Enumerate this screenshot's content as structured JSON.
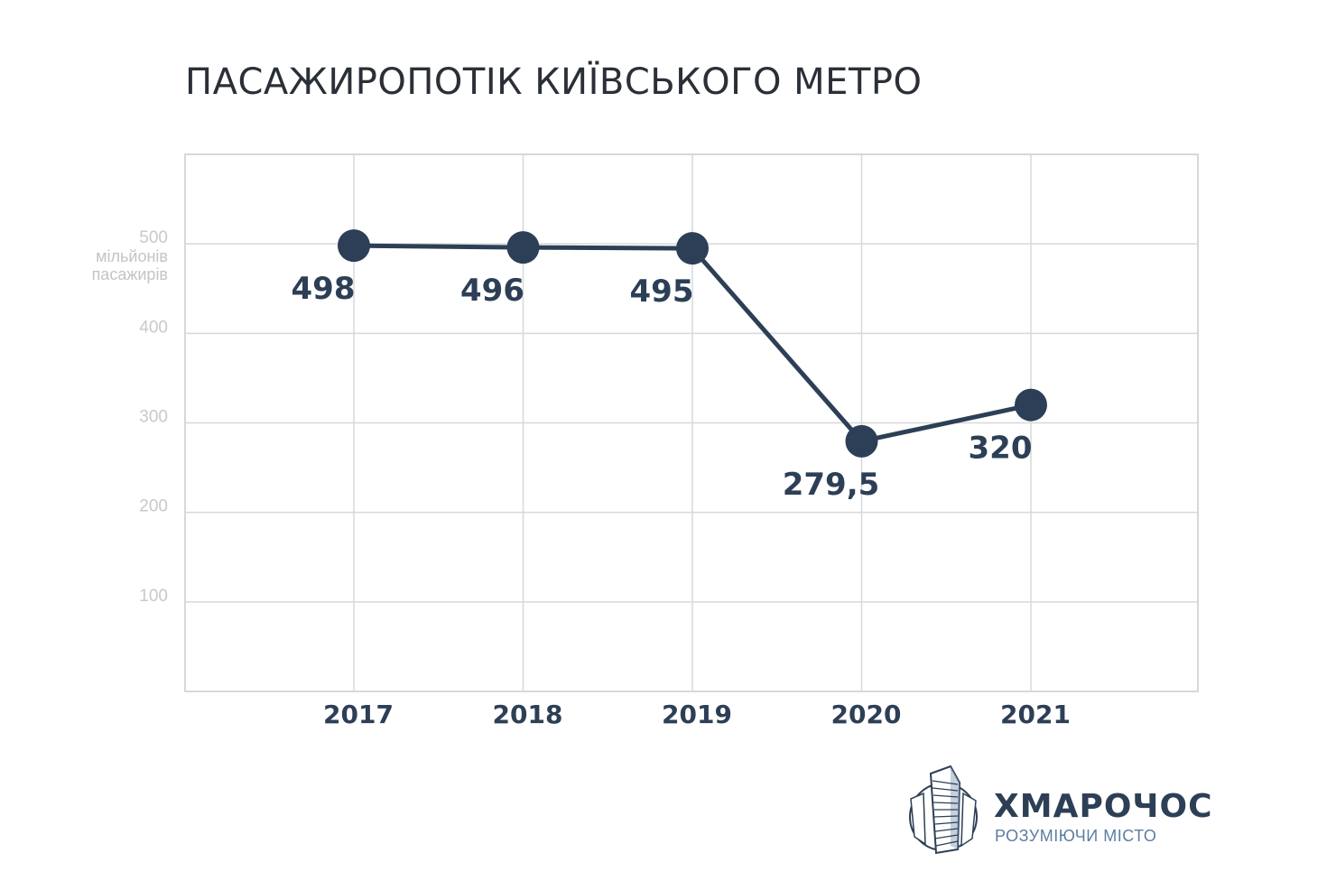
{
  "page": {
    "title": "ПАСАЖИРОПОТІК КИЇВСЬКОГО МЕТРО"
  },
  "chart_data": {
    "type": "line",
    "title": "ПАСАЖИРОПОТІК КИЇВСЬКОГО МЕТРО",
    "ylabel": "мільйонів пасажирів",
    "ylabel_lines": [
      "мільйонів",
      "пасажирів"
    ],
    "xlabel": "",
    "categories": [
      "2017",
      "2018",
      "2019",
      "2020",
      "2021"
    ],
    "series": [
      {
        "values": [
          498,
          496,
          495,
          279.5,
          320
        ],
        "labels": [
          "498",
          "496",
          "495",
          "279,5",
          "320"
        ]
      }
    ],
    "y_ticks": [
      100,
      200,
      300,
      400,
      500
    ],
    "ylim": [
      0,
      600
    ],
    "grid": true,
    "legend": "none",
    "colors": {
      "line": "#2d3f56",
      "grid": "#d6d8db",
      "tick_text": "#c7c9cc"
    }
  },
  "logo": {
    "name": "ХМАРОЧОС",
    "tagline": "РОЗУМІЮЧИ МІСТО",
    "icon": "skyscraper-icon"
  }
}
